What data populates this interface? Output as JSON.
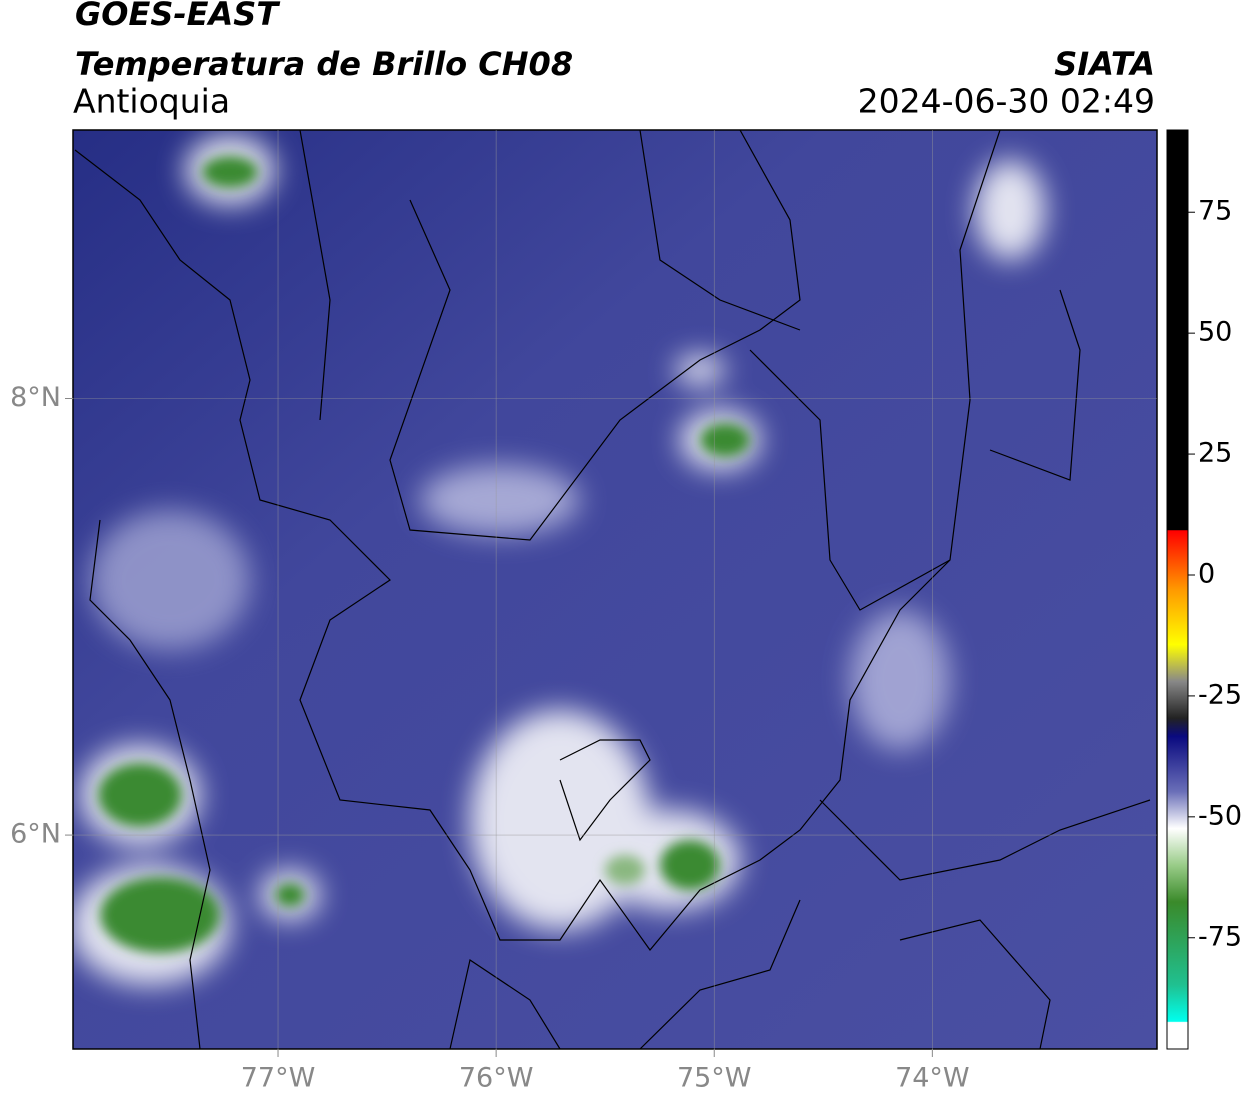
{
  "header": {
    "title": "GOES-EAST",
    "subtitle": "Temperatura de Brillo CH08",
    "region": "Antioquia",
    "source": "SIATA",
    "datetime": "2024-06-30 02:49"
  },
  "map": {
    "xlim": [
      -77.94,
      -72.97
    ],
    "ylim": [
      5.02,
      9.23
    ],
    "xticks": [
      {
        "value": -77,
        "label": "77°W"
      },
      {
        "value": -76,
        "label": "76°W"
      },
      {
        "value": -75,
        "label": "75°W"
      },
      {
        "value": -74,
        "label": "74°W"
      }
    ],
    "yticks": [
      {
        "value": 8,
        "label": "8°N"
      },
      {
        "value": 6,
        "label": "6°N"
      }
    ],
    "grid": true
  },
  "colorbar": {
    "clim": [
      -98,
      92
    ],
    "ticks": [
      75,
      50,
      25,
      0,
      -25,
      -50,
      -75
    ]
  }
}
